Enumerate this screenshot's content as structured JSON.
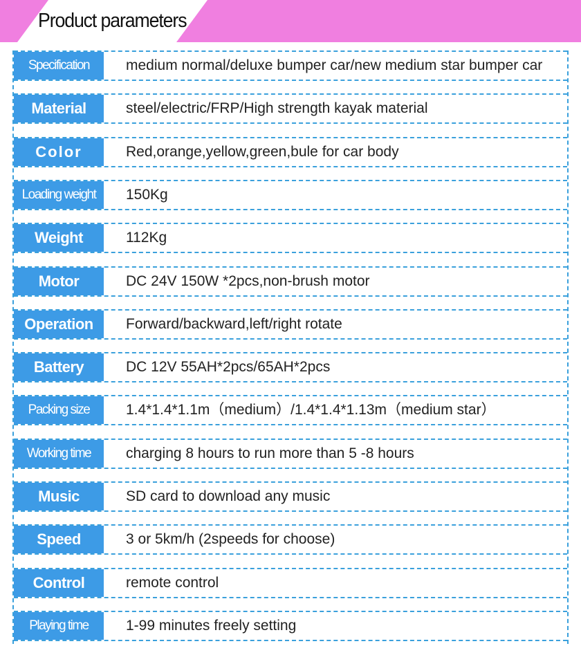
{
  "header": {
    "title": "Product parameters",
    "accent": "#f07fe0"
  },
  "label_color": "#3d9be6",
  "rows": [
    {
      "label": "Specification",
      "value": "medium normal/deluxe bumper car/new medium star bumper car"
    },
    {
      "label": "Material",
      "value": "steel/electric/FRP/High strength kayak material"
    },
    {
      "label": "Color",
      "value": "Red,orange,yellow,green,bule for car body"
    },
    {
      "label": "Loading weight",
      "value": "150Kg"
    },
    {
      "label": "Weight",
      "value": "112Kg"
    },
    {
      "label": "Motor",
      "value": "DC 24V 150W *2pcs,non-brush motor"
    },
    {
      "label": "Operation",
      "value": "Forward/backward,left/right rotate"
    },
    {
      "label": "Battery",
      "value": "DC 12V 55AH*2pcs/65AH*2pcs"
    },
    {
      "label": "Packing size",
      "value": "1.4*1.4*1.1m（medium）/1.4*1.4*1.13m（medium star）"
    },
    {
      "label": "Working time",
      "value": "charging 8 hours to run more than 5 -8 hours"
    },
    {
      "label": "Music",
      "value": "SD card to download any music"
    },
    {
      "label": "Speed",
      "value": "3 or 5km/h (2speeds for choose)"
    },
    {
      "label": "Control",
      "value": "remote control"
    },
    {
      "label": "Playing time",
      "value": "1-99 minutes freely setting"
    }
  ]
}
